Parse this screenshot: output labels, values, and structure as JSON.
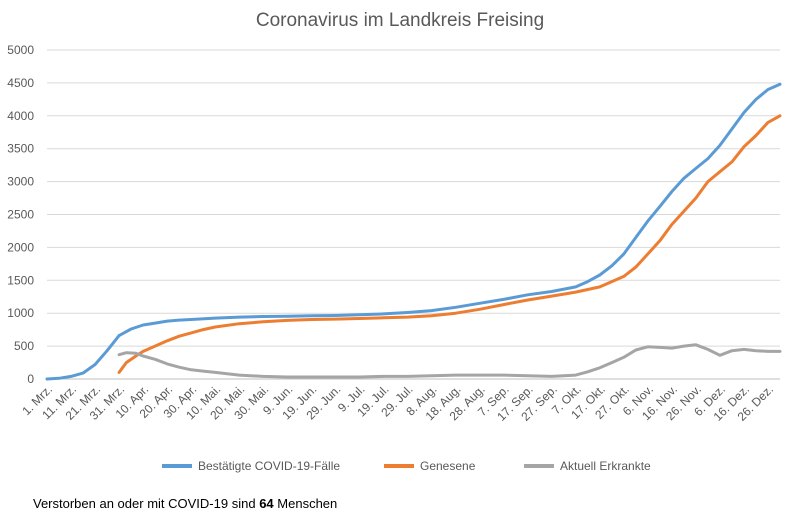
{
  "chart_data": {
    "type": "line",
    "title": "Coronavirus im Landkreis Freising",
    "xlabel": "",
    "ylabel": "",
    "ylim": [
      0,
      5000
    ],
    "yticks": [
      0,
      500,
      1000,
      1500,
      2000,
      2500,
      3000,
      3500,
      4000,
      4500,
      5000
    ],
    "grid": true,
    "legend_position": "bottom",
    "x_start": "2020-03-01",
    "x_end": "2020-12-31",
    "xticks": [
      {
        "date": "2020-03-01",
        "label": "1. Mrz."
      },
      {
        "date": "2020-03-11",
        "label": "11. Mrz."
      },
      {
        "date": "2020-03-21",
        "label": "21. Mrz."
      },
      {
        "date": "2020-03-31",
        "label": "31. Mrz."
      },
      {
        "date": "2020-04-10",
        "label": "10. Apr."
      },
      {
        "date": "2020-04-20",
        "label": "20. Apr."
      },
      {
        "date": "2020-04-30",
        "label": "30. Apr."
      },
      {
        "date": "2020-05-10",
        "label": "10. Mai."
      },
      {
        "date": "2020-05-20",
        "label": "20. Mai."
      },
      {
        "date": "2020-05-30",
        "label": "30. Mai."
      },
      {
        "date": "2020-06-09",
        "label": "9. Jun."
      },
      {
        "date": "2020-06-19",
        "label": "19. Jun."
      },
      {
        "date": "2020-06-29",
        "label": "29. Jun."
      },
      {
        "date": "2020-07-09",
        "label": "9. Jul."
      },
      {
        "date": "2020-07-19",
        "label": "19. Jul."
      },
      {
        "date": "2020-07-29",
        "label": "29. Jul."
      },
      {
        "date": "2020-08-08",
        "label": "8. Aug."
      },
      {
        "date": "2020-08-18",
        "label": "18. Aug."
      },
      {
        "date": "2020-08-28",
        "label": "28. Aug."
      },
      {
        "date": "2020-09-07",
        "label": "7. Sep."
      },
      {
        "date": "2020-09-17",
        "label": "17. Sep."
      },
      {
        "date": "2020-09-27",
        "label": "27. Sep."
      },
      {
        "date": "2020-10-07",
        "label": "7. Okt."
      },
      {
        "date": "2020-10-17",
        "label": "17. Okt."
      },
      {
        "date": "2020-10-27",
        "label": "27. Okt."
      },
      {
        "date": "2020-11-06",
        "label": "6. Nov."
      },
      {
        "date": "2020-11-16",
        "label": "16. Nov."
      },
      {
        "date": "2020-11-26",
        "label": "26. Nov."
      },
      {
        "date": "2020-12-06",
        "label": "6. Dez."
      },
      {
        "date": "2020-12-16",
        "label": "16. Dez."
      },
      {
        "date": "2020-12-26",
        "label": "26. Dez."
      }
    ],
    "series": [
      {
        "name": "Bestätigte COVID-19-Fälle",
        "color": "#5b9bd5",
        "points": [
          [
            "2020-03-01",
            0
          ],
          [
            "2020-03-06",
            10
          ],
          [
            "2020-03-11",
            40
          ],
          [
            "2020-03-16",
            90
          ],
          [
            "2020-03-21",
            220
          ],
          [
            "2020-03-26",
            430
          ],
          [
            "2020-03-31",
            660
          ],
          [
            "2020-04-05",
            760
          ],
          [
            "2020-04-10",
            820
          ],
          [
            "2020-04-15",
            850
          ],
          [
            "2020-04-20",
            880
          ],
          [
            "2020-04-25",
            895
          ],
          [
            "2020-04-30",
            905
          ],
          [
            "2020-05-10",
            925
          ],
          [
            "2020-05-20",
            940
          ],
          [
            "2020-05-30",
            950
          ],
          [
            "2020-06-09",
            955
          ],
          [
            "2020-06-19",
            960
          ],
          [
            "2020-06-29",
            965
          ],
          [
            "2020-07-09",
            975
          ],
          [
            "2020-07-19",
            990
          ],
          [
            "2020-07-29",
            1010
          ],
          [
            "2020-08-08",
            1040
          ],
          [
            "2020-08-18",
            1090
          ],
          [
            "2020-08-28",
            1150
          ],
          [
            "2020-09-07",
            1210
          ],
          [
            "2020-09-17",
            1280
          ],
          [
            "2020-09-27",
            1330
          ],
          [
            "2020-10-07",
            1400
          ],
          [
            "2020-10-12",
            1480
          ],
          [
            "2020-10-17",
            1580
          ],
          [
            "2020-10-22",
            1720
          ],
          [
            "2020-10-27",
            1900
          ],
          [
            "2020-11-01",
            2150
          ],
          [
            "2020-11-06",
            2400
          ],
          [
            "2020-11-11",
            2620
          ],
          [
            "2020-11-16",
            2850
          ],
          [
            "2020-11-21",
            3050
          ],
          [
            "2020-11-26",
            3200
          ],
          [
            "2020-12-01",
            3350
          ],
          [
            "2020-12-06",
            3550
          ],
          [
            "2020-12-11",
            3800
          ],
          [
            "2020-12-16",
            4050
          ],
          [
            "2020-12-21",
            4250
          ],
          [
            "2020-12-26",
            4400
          ],
          [
            "2020-12-31",
            4480
          ]
        ]
      },
      {
        "name": "Genesene",
        "color": "#ed7d31",
        "points": [
          [
            "2020-03-31",
            100
          ],
          [
            "2020-04-03",
            250
          ],
          [
            "2020-04-07",
            350
          ],
          [
            "2020-04-10",
            420
          ],
          [
            "2020-04-15",
            500
          ],
          [
            "2020-04-20",
            580
          ],
          [
            "2020-04-25",
            650
          ],
          [
            "2020-04-30",
            700
          ],
          [
            "2020-05-05",
            750
          ],
          [
            "2020-05-10",
            790
          ],
          [
            "2020-05-20",
            840
          ],
          [
            "2020-05-30",
            870
          ],
          [
            "2020-06-09",
            890
          ],
          [
            "2020-06-19",
            905
          ],
          [
            "2020-06-29",
            910
          ],
          [
            "2020-07-09",
            920
          ],
          [
            "2020-07-19",
            930
          ],
          [
            "2020-07-29",
            940
          ],
          [
            "2020-08-08",
            960
          ],
          [
            "2020-08-18",
            1000
          ],
          [
            "2020-08-28",
            1060
          ],
          [
            "2020-09-07",
            1130
          ],
          [
            "2020-09-17",
            1200
          ],
          [
            "2020-09-27",
            1260
          ],
          [
            "2020-10-07",
            1320
          ],
          [
            "2020-10-17",
            1400
          ],
          [
            "2020-10-27",
            1560
          ],
          [
            "2020-11-01",
            1700
          ],
          [
            "2020-11-06",
            1900
          ],
          [
            "2020-11-11",
            2100
          ],
          [
            "2020-11-16",
            2350
          ],
          [
            "2020-11-21",
            2550
          ],
          [
            "2020-11-26",
            2750
          ],
          [
            "2020-12-01",
            3000
          ],
          [
            "2020-12-06",
            3150
          ],
          [
            "2020-12-11",
            3300
          ],
          [
            "2020-12-16",
            3530
          ],
          [
            "2020-12-21",
            3700
          ],
          [
            "2020-12-26",
            3900
          ],
          [
            "2020-12-31",
            4000
          ]
        ]
      },
      {
        "name": "Aktuell Erkrankte",
        "color": "#a5a5a5",
        "points": [
          [
            "2020-03-31",
            370
          ],
          [
            "2020-04-03",
            400
          ],
          [
            "2020-04-07",
            390
          ],
          [
            "2020-04-10",
            350
          ],
          [
            "2020-04-15",
            300
          ],
          [
            "2020-04-20",
            230
          ],
          [
            "2020-04-25",
            180
          ],
          [
            "2020-04-30",
            140
          ],
          [
            "2020-05-05",
            120
          ],
          [
            "2020-05-10",
            100
          ],
          [
            "2020-05-15",
            80
          ],
          [
            "2020-05-20",
            60
          ],
          [
            "2020-05-30",
            40
          ],
          [
            "2020-06-09",
            30
          ],
          [
            "2020-06-19",
            30
          ],
          [
            "2020-06-29",
            30
          ],
          [
            "2020-07-09",
            30
          ],
          [
            "2020-07-19",
            40
          ],
          [
            "2020-07-29",
            40
          ],
          [
            "2020-08-08",
            50
          ],
          [
            "2020-08-18",
            60
          ],
          [
            "2020-08-28",
            60
          ],
          [
            "2020-09-07",
            60
          ],
          [
            "2020-09-17",
            50
          ],
          [
            "2020-09-27",
            40
          ],
          [
            "2020-10-07",
            60
          ],
          [
            "2020-10-12",
            110
          ],
          [
            "2020-10-17",
            170
          ],
          [
            "2020-10-22",
            250
          ],
          [
            "2020-10-27",
            330
          ],
          [
            "2020-11-01",
            440
          ],
          [
            "2020-11-06",
            490
          ],
          [
            "2020-11-11",
            480
          ],
          [
            "2020-11-16",
            470
          ],
          [
            "2020-11-21",
            500
          ],
          [
            "2020-11-26",
            520
          ],
          [
            "2020-12-01",
            450
          ],
          [
            "2020-12-06",
            360
          ],
          [
            "2020-12-11",
            430
          ],
          [
            "2020-12-16",
            450
          ],
          [
            "2020-12-21",
            430
          ],
          [
            "2020-12-26",
            420
          ],
          [
            "2020-12-31",
            420
          ]
        ]
      }
    ]
  },
  "footer": {
    "prefix": "Verstorben an oder mit COVID-19 sind",
    "count": "64",
    "suffix": "Menschen"
  }
}
